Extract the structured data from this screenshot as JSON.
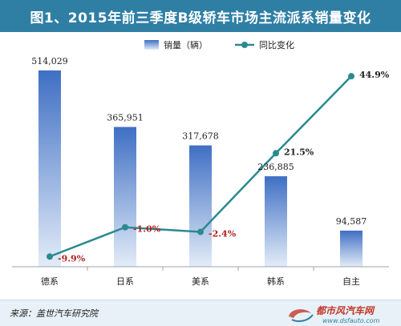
{
  "title": "图1、2015年前三季度B级轿车市场主流派系销量变化",
  "source": "来源：盖世汽车研究院",
  "watermark": {
    "name": "都市风汽车网",
    "url": "www.dsfauto.com"
  },
  "colors": {
    "header_bg": "#2f7fa5",
    "bar_top": "#3f6fc4",
    "bar_bottom": "#e3ecf8",
    "line": "#2a8a8f",
    "pct_negative": "#b22222",
    "pct_positive": "#222222"
  },
  "chart_data": {
    "type": "bar",
    "categories": [
      "德系",
      "日系",
      "美系",
      "韩系",
      "自主"
    ],
    "series": [
      {
        "name": "销量（辆）",
        "type": "bar",
        "values": [
          514029,
          365951,
          317678,
          236885,
          94587
        ],
        "labels": [
          "514,029",
          "365,951",
          "317,678",
          "236,885",
          "94,587"
        ]
      },
      {
        "name": "同比变化",
        "type": "line",
        "values": [
          -9.9,
          -1.0,
          -2.4,
          21.5,
          44.9
        ],
        "labels": [
          "-9.9%",
          "-1.0%",
          "-2.4%",
          "21.5%",
          "44.9%"
        ]
      }
    ],
    "ylim": [
      0,
      560000
    ],
    "y2lim": [
      -13,
      52
    ],
    "legend": "top-center",
    "grid": false
  }
}
